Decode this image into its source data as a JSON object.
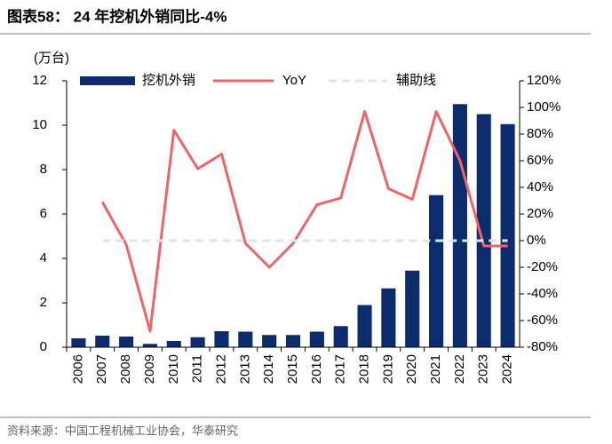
{
  "chart_data": {
    "type": "bar_line",
    "title": "图表58： 24 年挖机外销同比-4%",
    "y_label": "(万台)",
    "source": "资料来源：中国工程机械工业协会，华泰研究",
    "categories": [
      "2006",
      "2007",
      "2008",
      "2009",
      "2010",
      "2011",
      "2012",
      "2013",
      "2014",
      "2015",
      "2016",
      "2017",
      "2018",
      "2019",
      "2020",
      "2021",
      "2022",
      "2023",
      "2024"
    ],
    "series": [
      {
        "name": "挖机外销",
        "color": "#0c2c6e",
        "type": "bar",
        "values": [
          0.4,
          0.52,
          0.48,
          0.15,
          0.28,
          0.45,
          0.72,
          0.7,
          0.55,
          0.55,
          0.7,
          0.95,
          1.9,
          2.65,
          3.45,
          6.85,
          10.95,
          10.5,
          10.05
        ]
      },
      {
        "name": "YoY",
        "color": "#f06466",
        "type": "line",
        "axis": "y2",
        "values": [
          null,
          29,
          -3,
          -68,
          83,
          54,
          65,
          -2,
          -20,
          -2,
          27,
          32,
          97,
          39,
          31,
          97,
          60,
          -4,
          -4
        ]
      },
      {
        "name": "辅助线",
        "color": "#dce6f2",
        "type": "dashed",
        "axis": "y2",
        "values": [
          null,
          0,
          0,
          0,
          0,
          0,
          0,
          0,
          0,
          0,
          0,
          0,
          0,
          0,
          0,
          0,
          0,
          0,
          0
        ]
      }
    ],
    "ylim": [
      0,
      12
    ],
    "yticks": [
      0,
      2,
      4,
      6,
      8,
      10,
      12
    ],
    "y2lim": [
      -80,
      120
    ],
    "y2ticks": [
      {
        "value": -80,
        "label": "-80%"
      },
      {
        "value": -60,
        "label": "-60%"
      },
      {
        "value": -40,
        "label": "-40%"
      },
      {
        "value": -20,
        "label": "-20%"
      },
      {
        "value": 0,
        "label": "0%"
      },
      {
        "value": 20,
        "label": "20%"
      },
      {
        "value": 40,
        "label": "40%"
      },
      {
        "value": 60,
        "label": "60%"
      },
      {
        "value": 80,
        "label": "80%"
      },
      {
        "value": 100,
        "label": "100%"
      },
      {
        "value": 120,
        "label": "120%"
      }
    ]
  }
}
